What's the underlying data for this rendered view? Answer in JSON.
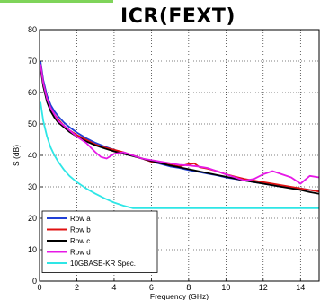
{
  "chart_data": {
    "type": "line",
    "title": "ICR(FEXT)",
    "xlabel": "Frequency (GHz)",
    "ylabel": "S (dB)",
    "xlim": [
      0,
      15
    ],
    "ylim": [
      0,
      80
    ],
    "xticks": [
      "0",
      "2",
      "4",
      "6",
      "8",
      "10",
      "12",
      "14"
    ],
    "yticks": [
      "0",
      "10",
      "20",
      "30",
      "40",
      "50",
      "60",
      "70",
      "80"
    ],
    "grid": true,
    "legend_position": "bottom-left",
    "series": [
      {
        "name": "Row a",
        "color": "#1f3fd6",
        "x": [
          0.05,
          0.2,
          0.4,
          0.6,
          0.8,
          1.0,
          1.3,
          1.6,
          2.0,
          2.5,
          3.0,
          3.5,
          4.0,
          4.5,
          5.0,
          5.5,
          6.0,
          6.5,
          7.0,
          7.5,
          8.0,
          8.5,
          9.0,
          9.5,
          10.0,
          10.5,
          11.0,
          11.5,
          12.0,
          12.5,
          13.0,
          13.5,
          14.0,
          14.5,
          15.0
        ],
        "y": [
          70,
          64,
          59,
          56,
          54,
          52.5,
          50.5,
          49,
          47.3,
          45.5,
          44,
          42.8,
          41.8,
          40.8,
          40,
          39,
          38,
          37.3,
          36.5,
          36,
          35.3,
          34.8,
          34.2,
          33.7,
          33,
          32.5,
          32,
          31.5,
          31,
          30.5,
          30,
          29.8,
          29.5,
          29,
          28.7
        ]
      },
      {
        "name": "Row b",
        "color": "#e01010",
        "x": [
          0.05,
          0.2,
          0.4,
          0.6,
          0.8,
          1.0,
          1.3,
          1.6,
          2.0,
          2.5,
          3.0,
          3.5,
          4.0,
          4.5,
          5.0,
          5.5,
          6.0,
          6.5,
          7.0,
          7.5,
          8.0,
          8.3,
          8.6,
          9.0,
          9.5,
          10.0,
          10.5,
          11.0,
          11.5,
          12.0,
          12.5,
          13.0,
          13.5,
          14.0,
          14.5,
          15.0
        ],
        "y": [
          69,
          63,
          58,
          55,
          53,
          51.5,
          49.5,
          48,
          46.5,
          45,
          43.5,
          42.5,
          41.8,
          41,
          40,
          39,
          38,
          37.5,
          37,
          36.5,
          37.2,
          37.5,
          36.2,
          35.8,
          35,
          34,
          33.2,
          32.5,
          32,
          31.5,
          31,
          30.5,
          30,
          29.5,
          29,
          28.5
        ]
      },
      {
        "name": "Row c",
        "color": "#000000",
        "x": [
          0.05,
          0.2,
          0.4,
          0.6,
          0.8,
          1.0,
          1.3,
          1.6,
          2.0,
          2.5,
          3.0,
          3.5,
          4.0,
          4.5,
          5.0,
          5.5,
          6.0,
          6.5,
          7.0,
          7.5,
          8.0,
          8.5,
          9.0,
          9.5,
          10.0,
          10.5,
          11.0,
          11.5,
          12.0,
          12.5,
          13.0,
          13.5,
          14.0,
          14.5,
          15.0
        ],
        "y": [
          68,
          62,
          57,
          54,
          52,
          50.5,
          49,
          47.5,
          46,
          44.5,
          43.2,
          42.2,
          41.3,
          40.5,
          39.8,
          39,
          38.2,
          37.5,
          36.8,
          36.2,
          35.6,
          35,
          34.4,
          33.8,
          33.2,
          32.6,
          32,
          31.5,
          31,
          30.5,
          30,
          29.5,
          29,
          28.3,
          27.8
        ]
      },
      {
        "name": "Row d",
        "color": "#e619e6",
        "x": [
          0.05,
          0.2,
          0.4,
          0.6,
          0.8,
          1.0,
          1.3,
          1.6,
          2.0,
          2.5,
          3.0,
          3.3,
          3.6,
          4.0,
          4.5,
          5.0,
          5.5,
          6.0,
          6.5,
          7.0,
          7.5,
          8.0,
          8.5,
          9.0,
          9.5,
          10.0,
          10.5,
          11.0,
          11.5,
          12.0,
          12.5,
          13.0,
          13.5,
          14.0,
          14.5,
          15.0
        ],
        "y": [
          69,
          63,
          58,
          55,
          53,
          51,
          49.5,
          48,
          46,
          44,
          41,
          39.5,
          39,
          40.5,
          41,
          40,
          39,
          38.5,
          38,
          37.5,
          37,
          36.8,
          36.5,
          36,
          35,
          34,
          33,
          32,
          32.5,
          34,
          35,
          34,
          33,
          31,
          33.5,
          33
        ]
      },
      {
        "name": "10GBASE-KR Spec.",
        "color": "#2ee6e6",
        "x": [
          0.05,
          0.2,
          0.4,
          0.6,
          0.8,
          1.0,
          1.3,
          1.6,
          2.0,
          2.5,
          3.0,
          3.5,
          4.0,
          4.5,
          5.0,
          5.5,
          6.0,
          7.0,
          8.0,
          9.0,
          10.0,
          11.0,
          12.0,
          13.0,
          14.0,
          15.0
        ],
        "y": [
          57,
          51,
          46,
          42.5,
          40,
          38,
          35.5,
          33.5,
          31.5,
          29.5,
          27.8,
          26.3,
          25,
          24,
          23.2,
          23.2,
          23.2,
          23.2,
          23.2,
          23.2,
          23.2,
          23.2,
          23.2,
          23.2,
          23.2,
          23.2
        ]
      }
    ]
  }
}
